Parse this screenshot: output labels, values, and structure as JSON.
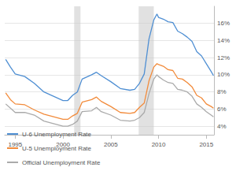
{
  "chart_data": {
    "type": "line",
    "x": [
      1994.0,
      1994.5,
      1995.0,
      1996.0,
      1997.0,
      1998.0,
      1999.0,
      2000.0,
      2000.5,
      2001.0,
      2001.5,
      2002.0,
      2003.0,
      2003.5,
      2004.0,
      2005.0,
      2006.0,
      2007.0,
      2007.5,
      2008.0,
      2008.5,
      2009.0,
      2009.5,
      2009.83,
      2010.0,
      2010.5,
      2011.0,
      2011.5,
      2012.0,
      2012.5,
      2013.0,
      2013.5,
      2014.0,
      2014.5,
      2015.0,
      2015.5,
      2015.75
    ],
    "series": [
      {
        "name": "U-6 Unemployment Rate",
        "color": "#4f8fd3",
        "values": [
          11.8,
          10.9,
          10.1,
          9.8,
          9.0,
          8.0,
          7.5,
          7.0,
          7.0,
          7.6,
          8.0,
          9.5,
          10.0,
          10.3,
          9.9,
          9.2,
          8.4,
          8.2,
          8.3,
          9.0,
          10.1,
          14.2,
          16.4,
          17.1,
          16.7,
          16.5,
          16.2,
          16.1,
          15.1,
          14.8,
          14.4,
          13.9,
          12.7,
          12.2,
          11.3,
          10.4,
          9.9
        ]
      },
      {
        "name": "U-5 Unemployment Rate",
        "color": "#f28b3b",
        "values": [
          7.9,
          7.1,
          6.6,
          6.5,
          5.9,
          5.4,
          5.1,
          4.8,
          4.8,
          5.2,
          5.5,
          6.8,
          7.1,
          7.4,
          6.9,
          6.3,
          5.6,
          5.5,
          5.6,
          6.2,
          6.7,
          9.3,
          10.9,
          11.3,
          11.2,
          11.0,
          10.6,
          10.5,
          9.6,
          9.5,
          9.1,
          8.6,
          7.6,
          7.3,
          6.6,
          6.3,
          6.1
        ]
      },
      {
        "name": "Official Unemployment Rate",
        "color": "#aaaaaa",
        "values": [
          6.6,
          6.1,
          5.6,
          5.6,
          5.3,
          4.6,
          4.3,
          4.0,
          4.0,
          4.2,
          4.6,
          5.7,
          5.8,
          6.2,
          5.7,
          5.3,
          4.7,
          4.6,
          4.7,
          5.0,
          5.6,
          7.8,
          9.5,
          10.0,
          9.8,
          9.4,
          9.1,
          9.0,
          8.3,
          8.2,
          8.0,
          7.5,
          6.6,
          6.2,
          5.7,
          5.3,
          5.1
        ]
      }
    ],
    "recessions": [
      [
        2001.17,
        2001.83
      ],
      [
        2007.92,
        2009.5
      ]
    ],
    "xlim": [
      1993.9,
      2015.8
    ],
    "xticks": [
      1995,
      2000,
      2005,
      2010,
      2015
    ],
    "ylim": [
      3,
      18
    ],
    "yticks": [
      {
        "value": 4,
        "label": "4%"
      },
      {
        "value": 6,
        "label": "6%"
      },
      {
        "value": 8,
        "label": "8%"
      },
      {
        "value": 10,
        "label": "10%"
      },
      {
        "value": 12,
        "label": "12%"
      },
      {
        "value": 14,
        "label": "14%"
      },
      {
        "value": 16,
        "label": "16%"
      }
    ],
    "grid": true,
    "legend": "bottom-left"
  }
}
